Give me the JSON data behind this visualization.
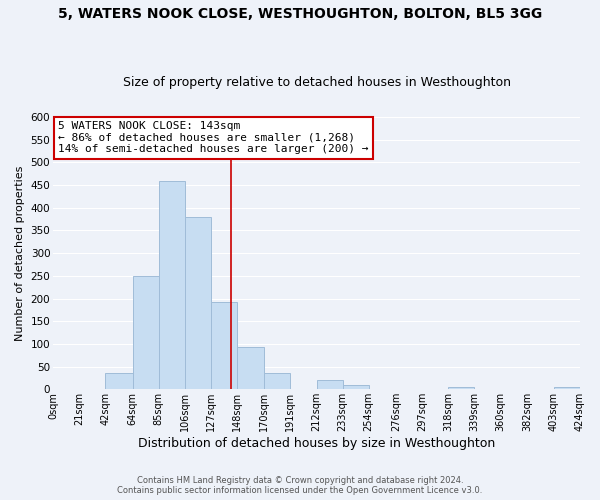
{
  "title": "5, WATERS NOOK CLOSE, WESTHOUGHTON, BOLTON, BL5 3GG",
  "subtitle": "Size of property relative to detached houses in Westhoughton",
  "xlabel": "Distribution of detached houses by size in Westhoughton",
  "ylabel": "Number of detached properties",
  "bar_edges": [
    0,
    21,
    42,
    64,
    85,
    106,
    127,
    148,
    170,
    191,
    212,
    233,
    254,
    276,
    297,
    318,
    339,
    360,
    382,
    403,
    424
  ],
  "bar_heights": [
    0,
    0,
    35,
    250,
    460,
    380,
    192,
    93,
    35,
    0,
    20,
    10,
    0,
    0,
    0,
    5,
    0,
    0,
    0,
    5
  ],
  "bar_color": "#c7ddf2",
  "bar_edge_color": "#a0bcd8",
  "vline_x": 143,
  "vline_color": "#cc0000",
  "annotation_text_line1": "5 WATERS NOOK CLOSE: 143sqm",
  "annotation_text_line2": "← 86% of detached houses are smaller (1,268)",
  "annotation_text_line3": "14% of semi-detached houses are larger (200) →",
  "annotation_box_color": "#ffffff",
  "annotation_border_color": "#cc0000",
  "tick_labels": [
    "0sqm",
    "21sqm",
    "42sqm",
    "64sqm",
    "85sqm",
    "106sqm",
    "127sqm",
    "148sqm",
    "170sqm",
    "191sqm",
    "212sqm",
    "233sqm",
    "254sqm",
    "276sqm",
    "297sqm",
    "318sqm",
    "339sqm",
    "360sqm",
    "382sqm",
    "403sqm",
    "424sqm"
  ],
  "ylim": [
    0,
    600
  ],
  "yticks": [
    0,
    50,
    100,
    150,
    200,
    250,
    300,
    350,
    400,
    450,
    500,
    550,
    600
  ],
  "footer_line1": "Contains HM Land Registry data © Crown copyright and database right 2024.",
  "footer_line2": "Contains public sector information licensed under the Open Government Licence v3.0.",
  "bg_color": "#eef2f9",
  "grid_color": "#ffffff",
  "title_fontsize": 10,
  "subtitle_fontsize": 9,
  "xlabel_fontsize": 9,
  "ylabel_fontsize": 8
}
